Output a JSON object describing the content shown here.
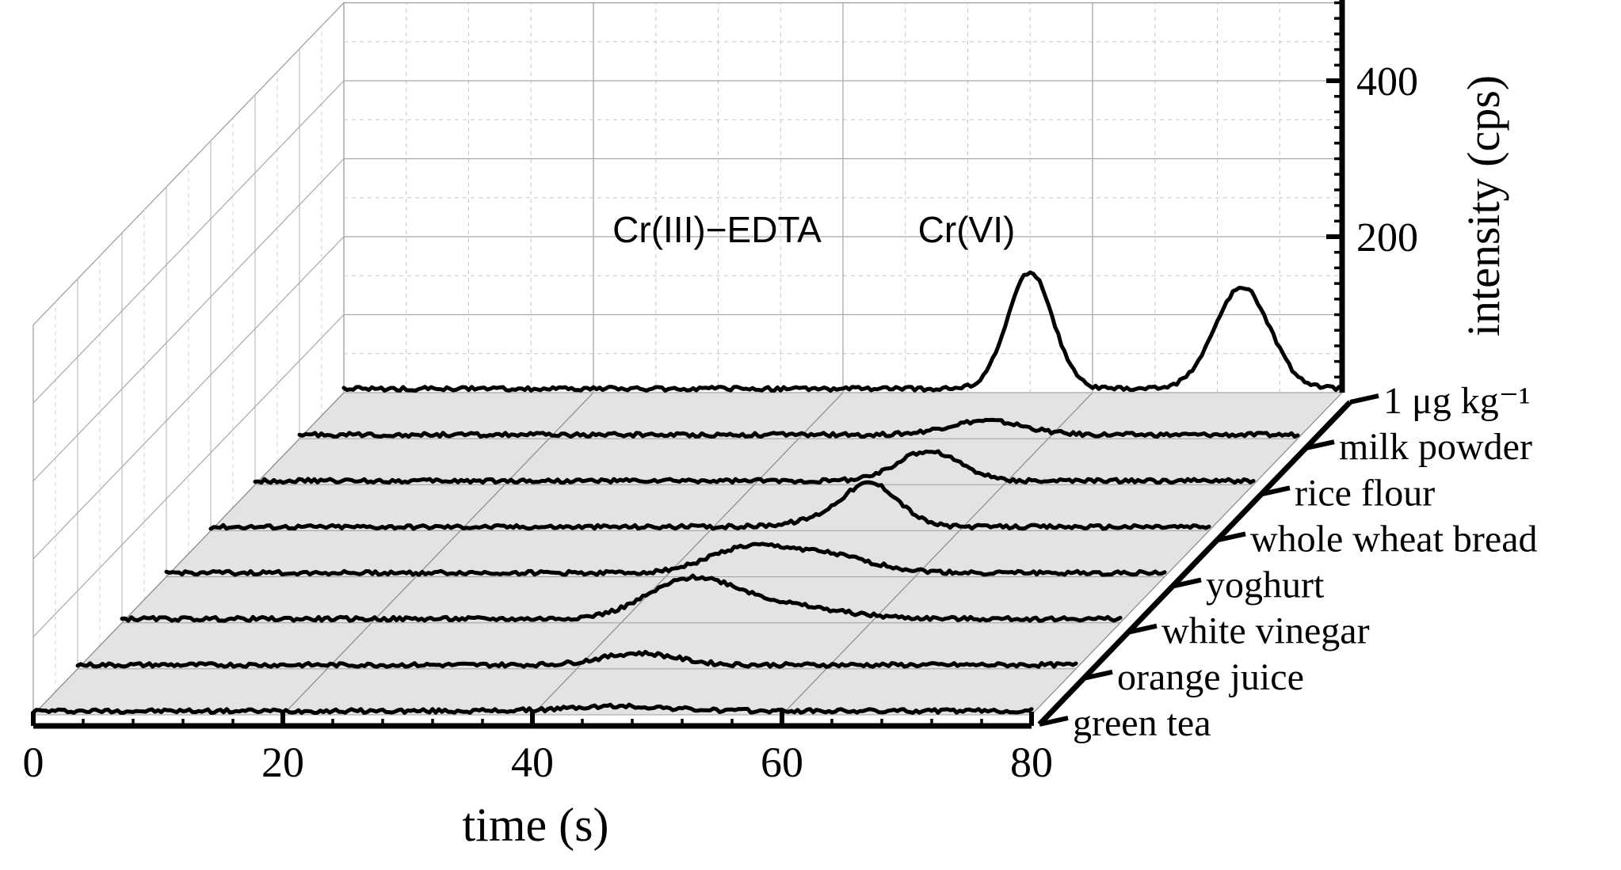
{
  "chart_data": {
    "type": "line",
    "style": "3d-waterfall",
    "xlabel": "time (s)",
    "zlabel": "intensity (cps)",
    "xlim": [
      0,
      80
    ],
    "zlim": [
      0,
      500
    ],
    "x_ticks": [
      0,
      20,
      40,
      60,
      80
    ],
    "x_tick_labels": [
      "0",
      "20",
      "40",
      "60",
      "80"
    ],
    "z_ticks": [
      200,
      400
    ],
    "z_tick_labels": [
      "200",
      "400"
    ],
    "annotations": [
      {
        "text": "Cr(III)−EDTA",
        "x": 55,
        "z": 215
      },
      {
        "text": "Cr(VI)",
        "x": 72,
        "z": 215
      }
    ],
    "series": [
      {
        "name": "green tea",
        "baseline": 5,
        "peaks": [
          [
            47,
            6,
            4
          ]
        ]
      },
      {
        "name": "orange juice",
        "baseline": 5,
        "peaks": [
          [
            45,
            15,
            3
          ]
        ]
      },
      {
        "name": "white vinegar",
        "baseline": 5,
        "peaks": [
          [
            45.5,
            45,
            3.5
          ],
          [
            52,
            18,
            5
          ]
        ]
      },
      {
        "name": "yoghurt",
        "baseline": 5,
        "peaks": [
          [
            46,
            25,
            3
          ],
          [
            52,
            25,
            4
          ]
        ]
      },
      {
        "name": "whole wheat bread",
        "baseline": 5,
        "peaks": [
          [
            53,
            50,
            2.2
          ],
          [
            50,
            10,
            3
          ]
        ]
      },
      {
        "name": "rice flour",
        "baseline": 5,
        "peaks": [
          [
            54,
            38,
            2.5
          ]
        ]
      },
      {
        "name": "milk powder",
        "baseline": 5,
        "peaks": [
          [
            55,
            18,
            3
          ]
        ]
      },
      {
        "name": "1 μg kg⁻¹",
        "baseline": 5,
        "peaks": [
          [
            55,
            150,
            1.8
          ],
          [
            72,
            130,
            2.2
          ]
        ]
      }
    ]
  }
}
